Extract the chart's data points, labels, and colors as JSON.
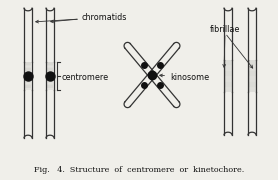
{
  "title": "Fig.   4.  Structure  of  centromere  or  kinetochore.",
  "bg_color": "#f0efea",
  "line_color": "#333333",
  "dot_color": "#111111",
  "label_chromatids": "chromatids",
  "label_centromere": "centromere",
  "label_kinosome": "kinosome",
  "label_fibrillae": "fibrillae",
  "fig_width": 2.78,
  "fig_height": 1.8,
  "dpi": 100
}
